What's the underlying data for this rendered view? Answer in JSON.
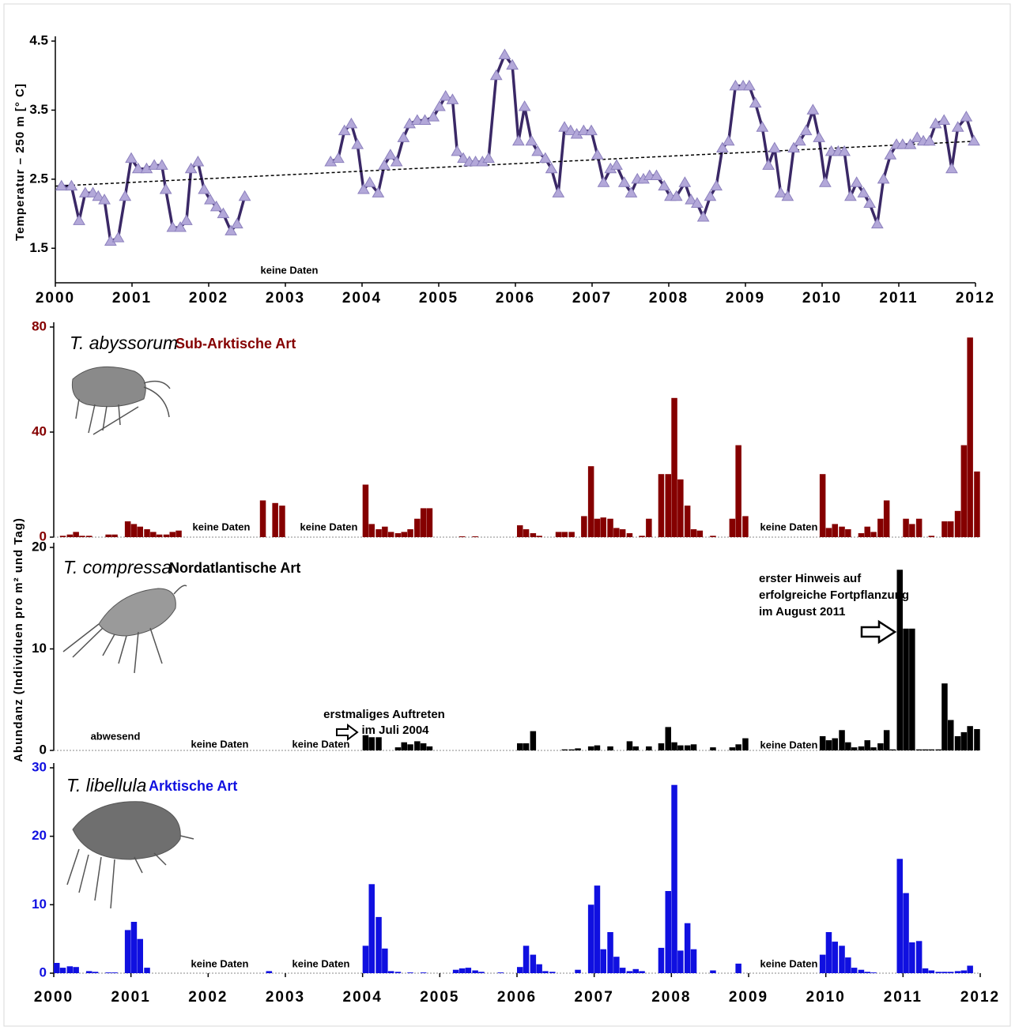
{
  "chart_data": [
    {
      "type": "line",
      "ylabel": "Temperatur – 250 m [° C]",
      "annotations": [
        "keine Daten"
      ],
      "xlim": [
        2000,
        2012
      ],
      "xticks": [
        2000,
        2001,
        2002,
        2003,
        2004,
        2005,
        2006,
        2007,
        2008,
        2009,
        2010,
        2011,
        2012
      ],
      "ylim": [
        1,
        4.5
      ],
      "yticks": [
        1.5,
        2.5,
        3.5,
        4.5
      ],
      "x": [
        2000.08,
        2000.21,
        2000.31,
        2000.39,
        2000.49,
        2000.56,
        2000.64,
        2000.72,
        2000.82,
        2000.91,
        2000.99,
        2001.08,
        2001.19,
        2001.29,
        2001.39,
        2001.44,
        2001.53,
        2001.63,
        2001.71,
        2001.77,
        2001.86,
        2001.94,
        2002.02,
        2002.1,
        2002.19,
        2002.29,
        2002.37,
        2002.47,
        2003.0,
        2003.59,
        2003.69,
        2003.77,
        2003.86,
        2003.94,
        2004.02,
        2004.1,
        2004.21,
        2004.29,
        2004.37,
        2004.45,
        2004.54,
        2004.62,
        2004.72,
        2004.82,
        2004.93,
        2005.01,
        2005.09,
        2005.18,
        2005.24,
        2005.32,
        2005.4,
        2005.48,
        2005.57,
        2005.65,
        2005.75,
        2005.86,
        2005.96,
        2006.04,
        2006.12,
        2006.21,
        2006.29,
        2006.39,
        2006.47,
        2006.56,
        2006.64,
        2006.72,
        2006.8,
        2006.89,
        2006.99,
        2007.07,
        2007.15,
        2007.24,
        2007.32,
        2007.42,
        2007.51,
        2007.59,
        2007.67,
        2007.75,
        2007.84,
        2007.94,
        2008.02,
        2008.1,
        2008.21,
        2008.29,
        2008.37,
        2008.45,
        2008.54,
        2008.62,
        2008.7,
        2008.78,
        2008.87,
        2008.97,
        2009.05,
        2009.13,
        2009.22,
        2009.3,
        2009.38,
        2009.46,
        2009.55,
        2009.63,
        2009.71,
        2009.79,
        2009.88,
        2009.96,
        2010.04,
        2010.12,
        2010.21,
        2010.29,
        2010.37,
        2010.45,
        2010.54,
        2010.62,
        2010.72,
        2010.8,
        2010.89,
        2010.97,
        2011.05,
        2011.15,
        2011.24,
        2011.32,
        2011.4,
        2011.48,
        2011.59,
        2011.69,
        2011.77,
        2011.88,
        2011.98
      ],
      "series": [
        {
          "color": "#3a2866",
          "marker_color": "#b3a8d9",
          "values": [
            2.4,
            2.4,
            1.9,
            2.3,
            2.3,
            2.25,
            2.2,
            1.6,
            1.65,
            2.25,
            2.8,
            2.65,
            2.65,
            2.7,
            2.7,
            2.35,
            1.8,
            1.8,
            1.9,
            2.65,
            2.75,
            2.35,
            2.2,
            2.1,
            2.0,
            1.75,
            1.85,
            2.25,
            null,
            2.75,
            2.8,
            3.2,
            3.3,
            3.0,
            2.35,
            2.45,
            2.3,
            2.7,
            2.85,
            2.75,
            3.1,
            3.3,
            3.35,
            3.35,
            3.4,
            3.55,
            3.7,
            3.65,
            2.9,
            2.8,
            2.75,
            2.75,
            2.75,
            2.8,
            4.0,
            4.3,
            4.15,
            3.05,
            3.55,
            3.05,
            2.9,
            2.8,
            2.65,
            2.3,
            3.25,
            3.2,
            3.15,
            3.2,
            3.2,
            2.85,
            2.45,
            2.65,
            2.7,
            2.45,
            2.3,
            2.5,
            2.5,
            2.55,
            2.55,
            2.4,
            2.25,
            2.25,
            2.45,
            2.2,
            2.15,
            1.95,
            2.25,
            2.4,
            2.95,
            3.05,
            3.85,
            3.85,
            3.85,
            3.6,
            3.25,
            2.7,
            2.95,
            2.3,
            2.25,
            2.95,
            3.05,
            3.2,
            3.5,
            3.1,
            2.45,
            2.9,
            2.9,
            2.9,
            2.25,
            2.45,
            2.3,
            2.15,
            1.85,
            2.5,
            2.85,
            3.0,
            3.0,
            3.0,
            3.1,
            3.05,
            3.05,
            3.3,
            3.35,
            2.65,
            3.25,
            3.4,
            3.05
          ]
        }
      ],
      "trend": {
        "color": "#000000",
        "x": [
          2000,
          2012
        ],
        "values": [
          2.4,
          3.05
        ]
      }
    },
    {
      "type": "bar",
      "title": "T. abyssorum",
      "subtitle": "Sub-Arktische Art",
      "annotations": [
        "keine Daten",
        "keine Daten",
        "keine Daten"
      ],
      "xlim": [
        2000,
        2012
      ],
      "ylim": [
        0,
        80
      ],
      "yticks": [
        0,
        40,
        80
      ],
      "x": [
        2000.08,
        2000.17,
        2000.25,
        2000.33,
        2000.42,
        2000.67,
        2000.75,
        2000.92,
        2001,
        2001.08,
        2001.17,
        2001.25,
        2001.33,
        2001.42,
        2001.5,
        2001.58,
        2002.67,
        2002.83,
        2002.92,
        2004,
        2004.08,
        2004.17,
        2004.25,
        2004.33,
        2004.42,
        2004.5,
        2004.58,
        2004.67,
        2004.75,
        2004.83,
        2005.25,
        2005.42,
        2006,
        2006.08,
        2006.17,
        2006.25,
        2006.5,
        2006.58,
        2006.67,
        2006.83,
        2006.92,
        2007,
        2007.08,
        2007.17,
        2007.25,
        2007.33,
        2007.42,
        2007.58,
        2007.67,
        2007.83,
        2007.92,
        2008,
        2008.08,
        2008.17,
        2008.25,
        2008.33,
        2008.5,
        2008.75,
        2008.83,
        2008.92,
        2009.92,
        2010,
        2010.08,
        2010.17,
        2010.25,
        2010.42,
        2010.5,
        2010.58,
        2010.67,
        2010.75,
        2011,
        2011.08,
        2011.17,
        2011.33,
        2011.5,
        2011.58,
        2011.67,
        2011.75,
        2011.83,
        2011.92
      ],
      "series": [
        {
          "color": "#850000",
          "values": [
            0.5,
            1,
            2,
            0.5,
            0.5,
            1,
            1,
            6,
            5,
            4,
            3,
            2,
            1,
            1,
            2,
            2.5,
            14,
            13,
            12,
            20,
            5,
            3,
            4,
            2,
            1.5,
            2,
            3,
            7,
            11,
            11,
            0.3,
            0.3,
            4.5,
            3,
            1.5,
            0.5,
            2,
            2,
            2,
            8,
            27,
            7,
            7.5,
            7,
            3.5,
            3,
            1.5,
            0.5,
            7,
            24,
            24,
            53,
            22,
            12,
            3,
            2.5,
            0.5,
            7,
            35,
            8,
            24,
            3.5,
            5,
            4,
            3,
            1.5,
            4,
            2,
            7,
            14,
            7,
            5,
            7,
            0.5,
            6,
            6,
            10,
            35,
            76,
            25
          ]
        }
      ]
    },
    {
      "type": "bar",
      "title": "T. compressa",
      "subtitle": "Nordatlantische Art",
      "ylabel": "Abundanz (Individuen pro m² und Tag)",
      "annotations": [
        "abwesend",
        "keine Daten",
        "keine Daten",
        "erstmaliges Auftreten",
        "im Juli 2004",
        "keine Daten",
        "erster Hinweis auf",
        "erfolgreiche Fortpflanzung",
        "im August 2011"
      ],
      "xlim": [
        2000,
        2012
      ],
      "ylim": [
        0,
        20
      ],
      "yticks": [
        0,
        10,
        20
      ],
      "x": [
        2004,
        2004.08,
        2004.17,
        2004.42,
        2004.5,
        2004.58,
        2004.67,
        2004.75,
        2004.83,
        2006,
        2006.08,
        2006.17,
        2006.58,
        2006.67,
        2006.75,
        2006.92,
        2007,
        2007.17,
        2007.42,
        2007.5,
        2007.67,
        2007.83,
        2007.92,
        2008,
        2008.08,
        2008.17,
        2008.25,
        2008.5,
        2008.75,
        2008.83,
        2008.92,
        2009.92,
        2010,
        2010.08,
        2010.17,
        2010.25,
        2010.33,
        2010.42,
        2010.5,
        2010.58,
        2010.67,
        2010.75,
        2010.83,
        2010.92,
        2011,
        2011.08,
        2011.17,
        2011.25,
        2011.33,
        2011.42,
        2011.5,
        2011.58,
        2011.67,
        2011.75,
        2011.83,
        2011.92
      ],
      "series": [
        {
          "color": "#000000",
          "values": [
            1.5,
            1.3,
            1.3,
            0.3,
            0.8,
            0.6,
            0.9,
            0.7,
            0.4,
            0.7,
            0.7,
            1.9,
            0.1,
            0.1,
            0.2,
            0.4,
            0.5,
            0.4,
            0.9,
            0.4,
            0.4,
            0.7,
            2.3,
            0.8,
            0.5,
            0.5,
            0.6,
            0.3,
            0.3,
            0.6,
            1.2,
            1.4,
            1,
            1.2,
            2,
            0.8,
            0.3,
            0.4,
            1,
            0.3,
            0.7,
            2,
            0.1,
            17.8,
            12,
            12,
            0.1,
            0.1,
            0.1,
            0.1,
            6.6,
            3,
            1.4,
            1.8,
            2.4,
            2.1
          ]
        }
      ]
    },
    {
      "type": "bar",
      "title": "T. libellula",
      "subtitle": "Arktische Art",
      "annotations": [
        "keine Daten",
        "keine Daten",
        "keine Daten"
      ],
      "xlim": [
        2000,
        2012
      ],
      "xticks": [
        2000,
        2001,
        2002,
        2003,
        2004,
        2005,
        2006,
        2007,
        2008,
        2009,
        2010,
        2011,
        2012
      ],
      "ylim": [
        0,
        30
      ],
      "yticks": [
        0,
        10,
        20,
        30
      ],
      "x": [
        2000,
        2000.08,
        2000.17,
        2000.25,
        2000.42,
        2000.5,
        2000.67,
        2000.75,
        2000.92,
        2001,
        2001.08,
        2001.17,
        2002.75,
        2004,
        2004.08,
        2004.17,
        2004.25,
        2004.33,
        2004.42,
        2004.58,
        2004.75,
        2005.17,
        2005.25,
        2005.33,
        2005.42,
        2005.5,
        2005.75,
        2006,
        2006.08,
        2006.17,
        2006.25,
        2006.33,
        2006.42,
        2006.75,
        2006.92,
        2007,
        2007.08,
        2007.17,
        2007.25,
        2007.33,
        2007.42,
        2007.5,
        2007.58,
        2007.83,
        2007.92,
        2008,
        2008.08,
        2008.17,
        2008.25,
        2008.5,
        2008.83,
        2009.92,
        2010,
        2010.08,
        2010.17,
        2010.25,
        2010.33,
        2010.42,
        2010.5,
        2010.58,
        2010.92,
        2011,
        2011.08,
        2011.17,
        2011.25,
        2011.33,
        2011.42,
        2011.5,
        2011.58,
        2011.67,
        2011.75,
        2011.83
      ],
      "series": [
        {
          "color": "#1010e0",
          "values": [
            1.5,
            0.8,
            1,
            0.9,
            0.3,
            0.2,
            0.1,
            0.1,
            6.3,
            7.5,
            5,
            0.8,
            0.3,
            4,
            13,
            8.2,
            3.6,
            0.3,
            0.2,
            0.1,
            0.1,
            0.5,
            0.7,
            0.8,
            0.4,
            0.2,
            0.1,
            0.9,
            4,
            2.7,
            1.3,
            0.3,
            0.2,
            0.5,
            10,
            12.8,
            3.5,
            6,
            2.4,
            0.8,
            0.3,
            0.6,
            0.3,
            3.7,
            12,
            27.5,
            3.3,
            7.3,
            3.5,
            0.4,
            1.4,
            2.7,
            6,
            4.6,
            4,
            2.3,
            0.8,
            0.5,
            0.2,
            0.1,
            16.7,
            11.7,
            4.5,
            4.7,
            0.7,
            0.4,
            0.2,
            0.2,
            0.2,
            0.3,
            0.4,
            1.1
          ]
        }
      ]
    }
  ]
}
